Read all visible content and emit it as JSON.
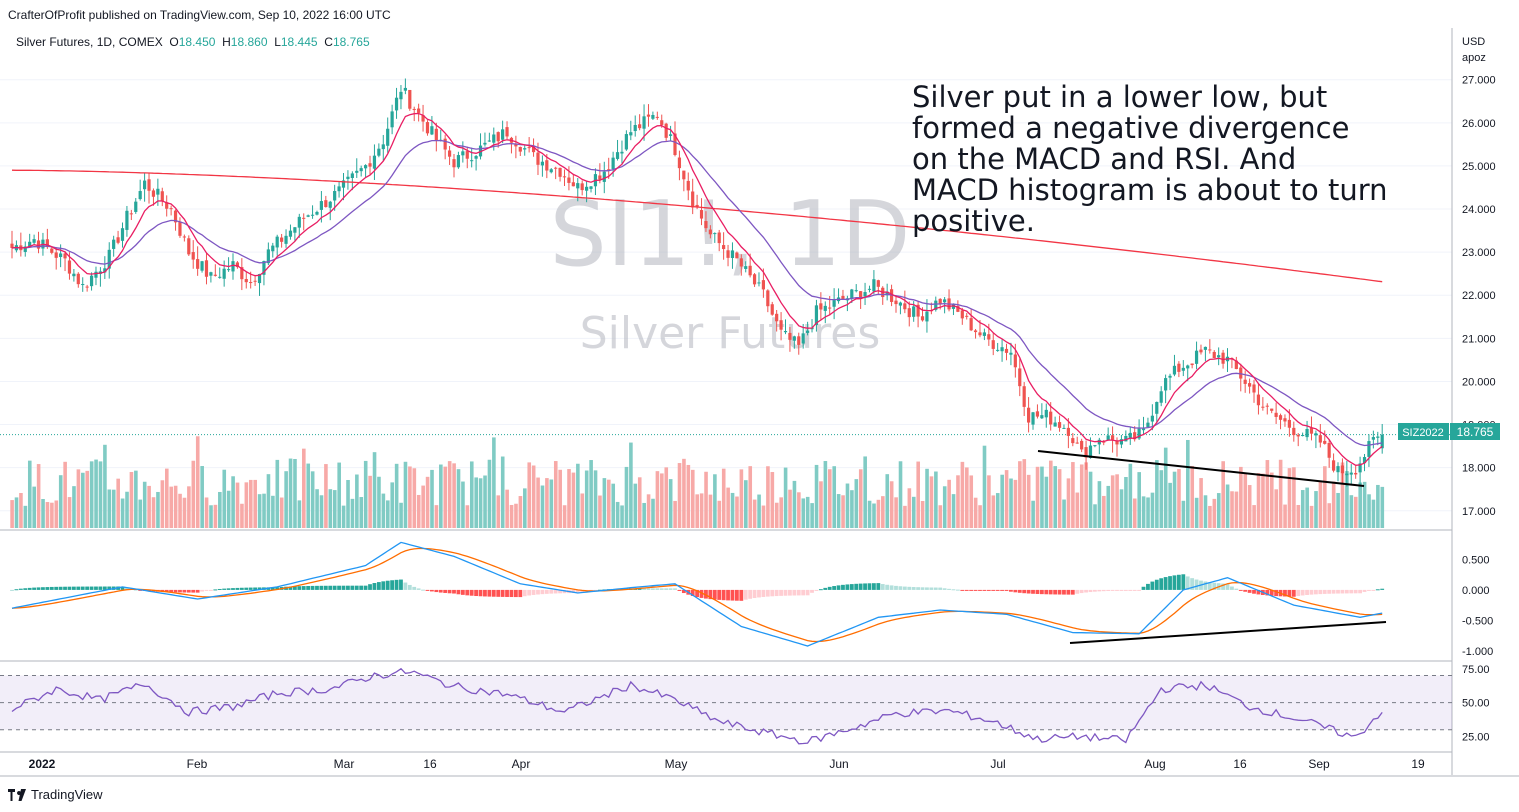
{
  "header": {
    "published": "CrafterOfProfit published on TradingView.com, Sep 10, 2022 16:00 UTC",
    "symbol_label": "Silver Futures, 1D, COMEX",
    "ohlc": [
      {
        "k": "O",
        "v": "18.450"
      },
      {
        "k": "H",
        "v": "18.860"
      },
      {
        "k": "L",
        "v": "18.445"
      },
      {
        "k": "C",
        "v": "18.765"
      }
    ]
  },
  "watermark": {
    "ticker": "SI1!, 1D",
    "name": "Silver Futures"
  },
  "annotation": "Silver put in a lower low, but formed a negative divergence on the MACD and RSI. And MACD histogram is about to turn positive.",
  "axis": {
    "currency": "USD",
    "unit": "apoz",
    "price_ticks": [
      "27.000",
      "26.000",
      "25.000",
      "24.000",
      "23.000",
      "22.000",
      "21.000",
      "20.000",
      "19.000",
      "18.000",
      "17.000"
    ],
    "macd_ticks": [
      "0.500",
      "0.000",
      "-0.500",
      "-1.000"
    ],
    "rsi_ticks": [
      "75.00",
      "50.00",
      "25.00"
    ],
    "time_labels": [
      "2022",
      "Feb",
      "Mar",
      "16",
      "Apr",
      "May",
      "Jun",
      "Jul",
      "Aug",
      "16",
      "Sep",
      "19"
    ]
  },
  "price_tag": {
    "symbol": "SIZ2022",
    "price": "18.765"
  },
  "colors": {
    "up": "#26a69a",
    "down": "#ef5350",
    "ma_short": "#e91e63",
    "ma_mid": "#7e57c2",
    "ma_long": "#f23645",
    "macd": "#2196f3",
    "signal": "#ff6d00",
    "rsi": "#7e57c2"
  },
  "chart_data": {
    "type": "candlestick",
    "keypoints": [
      [
        0,
        23.1
      ],
      [
        5,
        23.3
      ],
      [
        12,
        22.8
      ],
      [
        16,
        22.2
      ],
      [
        22,
        22.9
      ],
      [
        26,
        23.8
      ],
      [
        30,
        24.6
      ],
      [
        36,
        24.0
      ],
      [
        40,
        23.0
      ],
      [
        45,
        22.4
      ],
      [
        50,
        22.7
      ],
      [
        54,
        22.3
      ],
      [
        58,
        23.0
      ],
      [
        66,
        23.8
      ],
      [
        74,
        24.4
      ],
      [
        80,
        25.0
      ],
      [
        84,
        25.6
      ],
      [
        88,
        26.8
      ],
      [
        92,
        26.2
      ],
      [
        96,
        25.6
      ],
      [
        100,
        25.1
      ],
      [
        106,
        25.4
      ],
      [
        112,
        25.8
      ],
      [
        118,
        25.2
      ],
      [
        124,
        24.9
      ],
      [
        128,
        24.5
      ],
      [
        134,
        24.9
      ],
      [
        140,
        25.8
      ],
      [
        146,
        26.2
      ],
      [
        150,
        25.4
      ],
      [
        154,
        24.2
      ],
      [
        158,
        23.4
      ],
      [
        164,
        22.8
      ],
      [
        170,
        22.0
      ],
      [
        174,
        21.1
      ],
      [
        178,
        20.8
      ],
      [
        182,
        21.6
      ],
      [
        186,
        21.8
      ],
      [
        190,
        22.0
      ],
      [
        195,
        22.2
      ],
      [
        200,
        21.9
      ],
      [
        205,
        21.5
      ],
      [
        210,
        21.9
      ],
      [
        215,
        21.5
      ],
      [
        220,
        21.0
      ],
      [
        226,
        20.7
      ],
      [
        230,
        19.2
      ],
      [
        234,
        19.2
      ],
      [
        239,
        18.9
      ],
      [
        242,
        18.3
      ],
      [
        246,
        18.7
      ],
      [
        252,
        18.6
      ],
      [
        256,
        18.8
      ],
      [
        260,
        19.9
      ],
      [
        264,
        20.3
      ],
      [
        270,
        20.7
      ],
      [
        275,
        20.5
      ],
      [
        279,
        20.0
      ],
      [
        284,
        19.3
      ],
      [
        290,
        18.9
      ],
      [
        296,
        18.6
      ],
      [
        300,
        17.9
      ],
      [
        304,
        18.0
      ],
      [
        308,
        18.6
      ],
      [
        310,
        18.765
      ]
    ],
    "ohlc_last": {
      "open": 18.45,
      "high": 18.86,
      "low": 18.445,
      "close": 18.765
    },
    "moving_averages": [
      "short-term MA (pink)",
      "mid-term MA (purple)",
      "long-term MA (red)"
    ],
    "price_range": [
      16.6,
      28.2
    ],
    "macd": {
      "range": [
        -1.15,
        0.95
      ],
      "keypoints": [
        [
          0,
          -0.3
        ],
        [
          25,
          0.05
        ],
        [
          42,
          -0.15
        ],
        [
          60,
          0.05
        ],
        [
          80,
          0.4
        ],
        [
          88,
          0.78
        ],
        [
          100,
          0.55
        ],
        [
          115,
          0.1
        ],
        [
          128,
          -0.05
        ],
        [
          142,
          0.05
        ],
        [
          150,
          0.1
        ],
        [
          165,
          -0.6
        ],
        [
          180,
          -0.92
        ],
        [
          196,
          -0.45
        ],
        [
          210,
          -0.33
        ],
        [
          225,
          -0.4
        ],
        [
          240,
          -0.7
        ],
        [
          255,
          -0.72
        ],
        [
          265,
          0.0
        ],
        [
          275,
          0.2
        ],
        [
          290,
          -0.25
        ],
        [
          305,
          -0.45
        ],
        [
          310,
          -0.38
        ]
      ]
    },
    "rsi": {
      "range": [
        15,
        80
      ],
      "levels": [
        70,
        50,
        30
      ],
      "keypoints": [
        [
          0,
          45
        ],
        [
          10,
          60
        ],
        [
          20,
          52
        ],
        [
          30,
          64
        ],
        [
          40,
          43
        ],
        [
          50,
          47
        ],
        [
          60,
          57
        ],
        [
          72,
          60
        ],
        [
          82,
          70
        ],
        [
          90,
          73
        ],
        [
          100,
          62
        ],
        [
          112,
          56
        ],
        [
          125,
          43
        ],
        [
          140,
          63
        ],
        [
          150,
          52
        ],
        [
          160,
          36
        ],
        [
          170,
          28
        ],
        [
          180,
          21
        ],
        [
          190,
          31
        ],
        [
          200,
          42
        ],
        [
          212,
          44
        ],
        [
          222,
          36
        ],
        [
          232,
          23
        ],
        [
          242,
          25
        ],
        [
          252,
          22
        ],
        [
          260,
          60
        ],
        [
          270,
          63
        ],
        [
          280,
          47
        ],
        [
          292,
          37
        ],
        [
          304,
          24
        ],
        [
          310,
          44
        ]
      ]
    }
  }
}
